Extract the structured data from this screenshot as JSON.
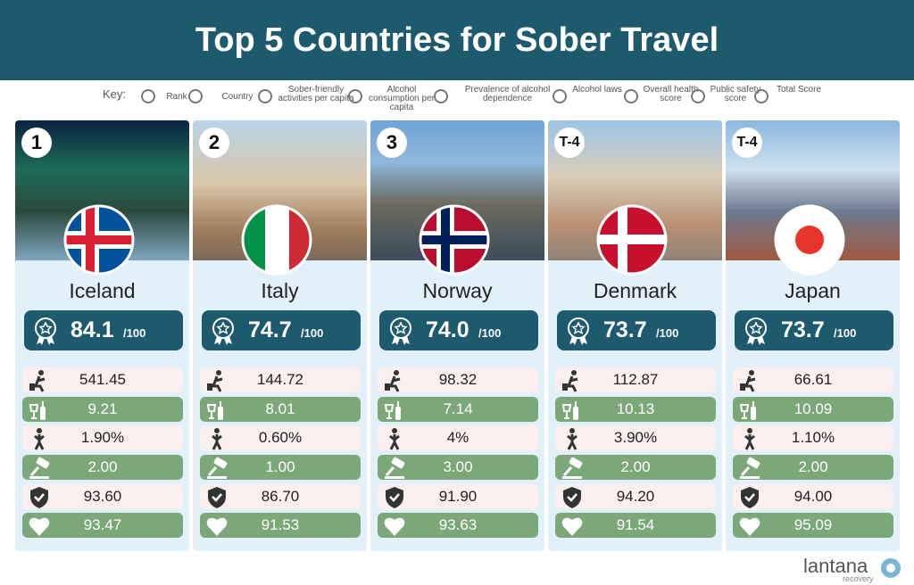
{
  "header": {
    "title": "Top 5 Countries for Sober Travel"
  },
  "key": {
    "label": "Key:",
    "items": [
      "Rank",
      "Country",
      "Sober-friendly activities per capita",
      "Alcohol consumption per capita",
      "Prevalence of alcohol dependence",
      "Alcohol laws",
      "Overall health score",
      "Public safety score",
      "Total Score"
    ]
  },
  "cards": [
    {
      "rank": "1",
      "country": "Iceland",
      "score": "84.1",
      "out_of": "/100",
      "metrics": [
        "541.45",
        "9.21",
        "1.90%",
        "2.00",
        "93.60",
        "93.47"
      ]
    },
    {
      "rank": "2",
      "country": "Italy",
      "score": "74.7",
      "out_of": "/100",
      "metrics": [
        "144.72",
        "8.01",
        "0.60%",
        "1.00",
        "86.70",
        "91.53"
      ]
    },
    {
      "rank": "3",
      "country": "Norway",
      "score": "74.0",
      "out_of": "/100",
      "metrics": [
        "98.32",
        "7.14",
        "4%",
        "3.00",
        "91.90",
        "93.63"
      ]
    },
    {
      "rank": "T-4",
      "country": "Denmark",
      "score": "73.7",
      "out_of": "/100",
      "metrics": [
        "112.87",
        "10.13",
        "3.90%",
        "2.00",
        "94.20",
        "91.54"
      ]
    },
    {
      "rank": "T-4",
      "country": "Japan",
      "score": "73.7",
      "out_of": "/100",
      "metrics": [
        "66.61",
        "10.09",
        "1.10%",
        "2.00",
        "94.00",
        "95.09"
      ]
    }
  ],
  "logo": {
    "name": "lantana",
    "sub": "recovery"
  }
}
